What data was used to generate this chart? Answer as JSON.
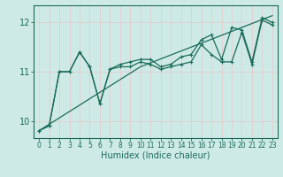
{
  "xlabel": "Humidex (Indice chaleur)",
  "xlim": [
    -0.5,
    23.5
  ],
  "ylim": [
    9.65,
    12.35
  ],
  "yticks": [
    10,
    11,
    12
  ],
  "xticks": [
    0,
    1,
    2,
    3,
    4,
    5,
    6,
    7,
    8,
    9,
    10,
    11,
    12,
    13,
    14,
    15,
    16,
    17,
    18,
    19,
    20,
    21,
    22,
    23
  ],
  "background_color": "#ceeae6",
  "grid_color": "#b8d8d4",
  "line_color": "#1a6b5a",
  "line1": [
    9.8,
    9.9,
    11.0,
    11.0,
    11.4,
    11.1,
    10.35,
    11.05,
    11.1,
    11.1,
    11.2,
    11.15,
    11.05,
    11.1,
    11.15,
    11.2,
    11.55,
    11.35,
    11.2,
    11.2,
    11.8,
    11.15,
    12.05,
    11.95
  ],
  "line2": [
    9.8,
    9.9,
    11.0,
    11.0,
    11.4,
    11.1,
    10.35,
    11.05,
    11.15,
    11.2,
    11.25,
    11.25,
    11.1,
    11.15,
    11.3,
    11.35,
    11.65,
    11.75,
    11.25,
    11.9,
    11.85,
    11.2,
    12.1,
    12.0
  ],
  "trend": [
    9.8,
    9.93,
    10.06,
    10.19,
    10.32,
    10.45,
    10.58,
    10.71,
    10.84,
    10.97,
    11.1,
    11.18,
    11.26,
    11.34,
    11.42,
    11.5,
    11.58,
    11.66,
    11.74,
    11.82,
    11.9,
    11.98,
    12.06,
    12.14
  ]
}
